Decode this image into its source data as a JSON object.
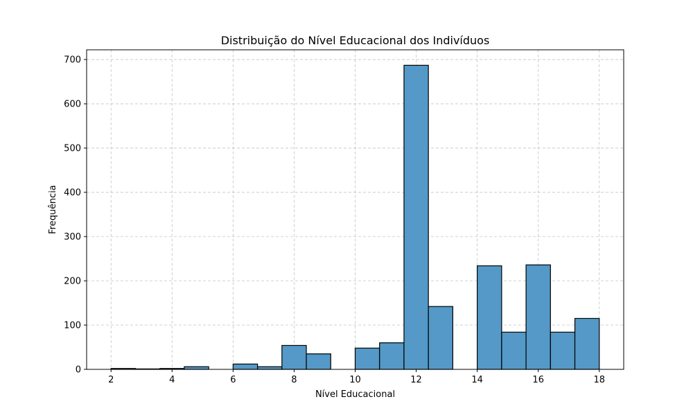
{
  "chart_data": {
    "type": "bar",
    "title": "Distribuição do Nível Educacional dos Indivíduos",
    "xlabel": "Nível Educacional",
    "ylabel": "Frequência",
    "xlim": [
      1.2,
      18.8
    ],
    "ylim": [
      0,
      722
    ],
    "xticks": [
      2,
      4,
      6,
      8,
      10,
      12,
      14,
      16,
      18
    ],
    "yticks": [
      0,
      100,
      200,
      300,
      400,
      500,
      600,
      700
    ],
    "grid": true,
    "bar_color": "#5499c7",
    "bins": [
      {
        "x0": 2.0,
        "x1": 2.8,
        "value": 2
      },
      {
        "x0": 2.8,
        "x1": 3.6,
        "value": 1
      },
      {
        "x0": 3.6,
        "x1": 4.4,
        "value": 2
      },
      {
        "x0": 4.4,
        "x1": 5.2,
        "value": 6
      },
      {
        "x0": 5.2,
        "x1": 6.0,
        "value": 0
      },
      {
        "x0": 6.0,
        "x1": 6.8,
        "value": 12
      },
      {
        "x0": 6.8,
        "x1": 7.6,
        "value": 6
      },
      {
        "x0": 7.6,
        "x1": 8.4,
        "value": 54
      },
      {
        "x0": 8.4,
        "x1": 9.2,
        "value": 35
      },
      {
        "x0": 9.2,
        "x1": 10.0,
        "value": 0
      },
      {
        "x0": 10.0,
        "x1": 10.8,
        "value": 48
      },
      {
        "x0": 10.8,
        "x1": 11.6,
        "value": 60
      },
      {
        "x0": 11.6,
        "x1": 12.4,
        "value": 687
      },
      {
        "x0": 12.4,
        "x1": 13.2,
        "value": 142
      },
      {
        "x0": 13.2,
        "x1": 14.0,
        "value": 0
      },
      {
        "x0": 14.0,
        "x1": 14.8,
        "value": 234
      },
      {
        "x0": 14.8,
        "x1": 15.6,
        "value": 84
      },
      {
        "x0": 15.6,
        "x1": 16.4,
        "value": 236
      },
      {
        "x0": 16.4,
        "x1": 17.2,
        "value": 84
      },
      {
        "x0": 17.2,
        "x1": 18.0,
        "value": 115
      }
    ]
  }
}
